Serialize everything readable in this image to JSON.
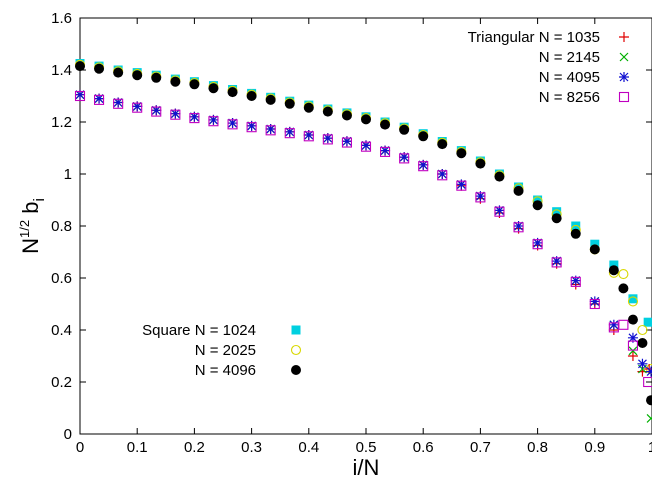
{
  "chart_data": {
    "type": "scatter",
    "xlabel": "i/N",
    "ylabel": "N^{1/2} b_i",
    "ylabel_parts": {
      "base1": "N",
      "sup": "1/2",
      "base2": " b",
      "sub": "i"
    },
    "xlim": [
      0,
      1
    ],
    "ylim": [
      0,
      1.6
    ],
    "x_ticks": [
      0,
      0.1,
      0.2,
      0.3,
      0.4,
      0.5,
      0.6,
      0.7,
      0.8,
      0.9,
      1
    ],
    "y_ticks": [
      0,
      0.2,
      0.4,
      0.6,
      0.8,
      1,
      1.2,
      1.4,
      1.6
    ],
    "x_tick_labels": [
      "0",
      "0.1",
      "0.2",
      "0.3",
      "0.4",
      "0.5",
      "0.6",
      "0.7",
      "0.8",
      "0.9",
      "1"
    ],
    "y_tick_labels": [
      "0",
      "0.2",
      "0.4",
      "0.6",
      "0.8",
      "1",
      "1.2",
      "1.4",
      "1.6"
    ],
    "grid": false,
    "legends": [
      {
        "position": "top-right",
        "entries": [
          {
            "label": "Triangular N = 1035",
            "series": 0
          },
          {
            "label": "N = 2145",
            "series": 1
          },
          {
            "label": "N = 4095",
            "series": 2
          },
          {
            "label": "N = 8256",
            "series": 3
          }
        ]
      },
      {
        "position": "bottom-left",
        "entries": [
          {
            "label": "Square N = 1024",
            "series": 4
          },
          {
            "label": "N = 2025",
            "series": 5
          },
          {
            "label": "N = 4096",
            "series": 6
          }
        ]
      }
    ],
    "series": [
      {
        "name": "Triangular N = 1035",
        "marker": "plus",
        "color": "#e00000",
        "points": [
          [
            0,
            1.305
          ],
          [
            0.0333,
            1.29
          ],
          [
            0.0667,
            1.275
          ],
          [
            0.1,
            1.26
          ],
          [
            0.1333,
            1.245
          ],
          [
            0.1667,
            1.232
          ],
          [
            0.2,
            1.22
          ],
          [
            0.2333,
            1.208
          ],
          [
            0.2667,
            1.196
          ],
          [
            0.3,
            1.185
          ],
          [
            0.3333,
            1.173
          ],
          [
            0.3667,
            1.162
          ],
          [
            0.4,
            1.15
          ],
          [
            0.4333,
            1.138
          ],
          [
            0.4667,
            1.126
          ],
          [
            0.5,
            1.11
          ],
          [
            0.5333,
            1.09
          ],
          [
            0.5667,
            1.065
          ],
          [
            0.6,
            1.035
          ],
          [
            0.6333,
            1.0
          ],
          [
            0.6667,
            0.955
          ],
          [
            0.7,
            0.905
          ],
          [
            0.7333,
            0.85
          ],
          [
            0.7667,
            0.79
          ],
          [
            0.8,
            0.725
          ],
          [
            0.8333,
            0.655
          ],
          [
            0.8667,
            0.575
          ],
          [
            0.9,
            0.5
          ],
          [
            0.9333,
            0.4
          ],
          [
            0.9667,
            0.3
          ],
          [
            0.9833,
            0.24
          ],
          [
            0.995,
            0.25
          ]
        ]
      },
      {
        "name": "N = 2145",
        "marker": "cross",
        "color": "#00b000",
        "points": [
          [
            0,
            1.305
          ],
          [
            0.0333,
            1.29
          ],
          [
            0.0667,
            1.275
          ],
          [
            0.1,
            1.26
          ],
          [
            0.1333,
            1.245
          ],
          [
            0.1667,
            1.232
          ],
          [
            0.2,
            1.22
          ],
          [
            0.2333,
            1.208
          ],
          [
            0.2667,
            1.196
          ],
          [
            0.3,
            1.185
          ],
          [
            0.3333,
            1.173
          ],
          [
            0.3667,
            1.162
          ],
          [
            0.4,
            1.15
          ],
          [
            0.4333,
            1.138
          ],
          [
            0.4667,
            1.126
          ],
          [
            0.5,
            1.11
          ],
          [
            0.5333,
            1.09
          ],
          [
            0.5667,
            1.065
          ],
          [
            0.6,
            1.035
          ],
          [
            0.6333,
            1.0
          ],
          [
            0.6667,
            0.96
          ],
          [
            0.7,
            0.915
          ],
          [
            0.7333,
            0.86
          ],
          [
            0.7667,
            0.8
          ],
          [
            0.8,
            0.735
          ],
          [
            0.8333,
            0.665
          ],
          [
            0.8667,
            0.59
          ],
          [
            0.9,
            0.51
          ],
          [
            0.9333,
            0.42
          ],
          [
            0.9667,
            0.32
          ],
          [
            0.9833,
            0.25
          ],
          [
            0.9983,
            0.06
          ]
        ]
      },
      {
        "name": "N = 4095",
        "marker": "star",
        "color": "#1010d0",
        "points": [
          [
            0,
            1.305
          ],
          [
            0.0333,
            1.29
          ],
          [
            0.0667,
            1.275
          ],
          [
            0.1,
            1.26
          ],
          [
            0.1333,
            1.245
          ],
          [
            0.1667,
            1.232
          ],
          [
            0.2,
            1.22
          ],
          [
            0.2333,
            1.208
          ],
          [
            0.2667,
            1.196
          ],
          [
            0.3,
            1.185
          ],
          [
            0.3333,
            1.173
          ],
          [
            0.3667,
            1.162
          ],
          [
            0.4,
            1.15
          ],
          [
            0.4333,
            1.138
          ],
          [
            0.4667,
            1.126
          ],
          [
            0.5,
            1.11
          ],
          [
            0.5333,
            1.09
          ],
          [
            0.5667,
            1.065
          ],
          [
            0.6,
            1.035
          ],
          [
            0.6333,
            1.0
          ],
          [
            0.6667,
            0.96
          ],
          [
            0.7,
            0.915
          ],
          [
            0.7333,
            0.86
          ],
          [
            0.7667,
            0.8
          ],
          [
            0.8,
            0.735
          ],
          [
            0.8333,
            0.665
          ],
          [
            0.8667,
            0.59
          ],
          [
            0.9,
            0.51
          ],
          [
            0.9333,
            0.42
          ],
          [
            0.9667,
            0.37
          ],
          [
            0.9833,
            0.27
          ],
          [
            0.9983,
            0.24
          ]
        ]
      },
      {
        "name": "N = 8256",
        "marker": "boxdot",
        "color": "#c000c0",
        "points": [
          [
            0,
            1.3
          ],
          [
            0.0333,
            1.285
          ],
          [
            0.0667,
            1.27
          ],
          [
            0.1,
            1.255
          ],
          [
            0.1333,
            1.24
          ],
          [
            0.1667,
            1.228
          ],
          [
            0.2,
            1.215
          ],
          [
            0.2333,
            1.203
          ],
          [
            0.2667,
            1.191
          ],
          [
            0.3,
            1.18
          ],
          [
            0.3333,
            1.168
          ],
          [
            0.3667,
            1.157
          ],
          [
            0.4,
            1.145
          ],
          [
            0.4333,
            1.133
          ],
          [
            0.4667,
            1.121
          ],
          [
            0.5,
            1.105
          ],
          [
            0.5333,
            1.085
          ],
          [
            0.5667,
            1.06
          ],
          [
            0.6,
            1.03
          ],
          [
            0.6333,
            0.995
          ],
          [
            0.6667,
            0.955
          ],
          [
            0.7,
            0.91
          ],
          [
            0.7333,
            0.855
          ],
          [
            0.7667,
            0.795
          ],
          [
            0.8,
            0.73
          ],
          [
            0.8333,
            0.66
          ],
          [
            0.8667,
            0.585
          ],
          [
            0.9,
            0.5
          ],
          [
            0.9333,
            0.41
          ],
          [
            0.95,
            0.42
          ],
          [
            0.9667,
            0.34
          ],
          [
            0.9933,
            0.2
          ]
        ]
      },
      {
        "name": "Square N = 1024",
        "marker": "filled-square",
        "color": "#00d0e0",
        "points": [
          [
            0,
            1.425
          ],
          [
            0.0333,
            1.415
          ],
          [
            0.0667,
            1.4
          ],
          [
            0.1,
            1.39
          ],
          [
            0.1333,
            1.38
          ],
          [
            0.1667,
            1.365
          ],
          [
            0.2,
            1.355
          ],
          [
            0.2333,
            1.34
          ],
          [
            0.2667,
            1.325
          ],
          [
            0.3,
            1.31
          ],
          [
            0.3333,
            1.295
          ],
          [
            0.3667,
            1.28
          ],
          [
            0.4,
            1.265
          ],
          [
            0.4333,
            1.25
          ],
          [
            0.4667,
            1.235
          ],
          [
            0.5,
            1.22
          ],
          [
            0.5333,
            1.2
          ],
          [
            0.5667,
            1.18
          ],
          [
            0.6,
            1.155
          ],
          [
            0.6333,
            1.125
          ],
          [
            0.6667,
            1.09
          ],
          [
            0.7,
            1.05
          ],
          [
            0.7333,
            1.0
          ],
          [
            0.7667,
            0.95
          ],
          [
            0.8,
            0.9
          ],
          [
            0.8333,
            0.855
          ],
          [
            0.8667,
            0.8
          ],
          [
            0.9,
            0.73
          ],
          [
            0.9333,
            0.65
          ],
          [
            0.9667,
            0.52
          ],
          [
            0.9933,
            0.43
          ]
        ]
      },
      {
        "name": "N = 2025",
        "marker": "circle",
        "color": "#d8d800",
        "points": [
          [
            0,
            1.42
          ],
          [
            0.0333,
            1.41
          ],
          [
            0.0667,
            1.395
          ],
          [
            0.1,
            1.385
          ],
          [
            0.1333,
            1.375
          ],
          [
            0.1667,
            1.36
          ],
          [
            0.2,
            1.35
          ],
          [
            0.2333,
            1.335
          ],
          [
            0.2667,
            1.32
          ],
          [
            0.3,
            1.305
          ],
          [
            0.3333,
            1.29
          ],
          [
            0.3667,
            1.275
          ],
          [
            0.4,
            1.26
          ],
          [
            0.4333,
            1.245
          ],
          [
            0.4667,
            1.23
          ],
          [
            0.5,
            1.215
          ],
          [
            0.5333,
            1.195
          ],
          [
            0.5667,
            1.175
          ],
          [
            0.6,
            1.15
          ],
          [
            0.6333,
            1.12
          ],
          [
            0.6667,
            1.085
          ],
          [
            0.7,
            1.045
          ],
          [
            0.7333,
            0.995
          ],
          [
            0.7667,
            0.945
          ],
          [
            0.8,
            0.895
          ],
          [
            0.8333,
            0.845
          ],
          [
            0.8667,
            0.785
          ],
          [
            0.9,
            0.71
          ],
          [
            0.9333,
            0.62
          ],
          [
            0.95,
            0.615
          ],
          [
            0.9667,
            0.51
          ],
          [
            0.9833,
            0.4
          ],
          [
            0.9983,
            0.25
          ]
        ]
      },
      {
        "name": "N = 4096",
        "marker": "filled-circle",
        "color": "#000000",
        "points": [
          [
            0,
            1.415
          ],
          [
            0.0333,
            1.405
          ],
          [
            0.0667,
            1.39
          ],
          [
            0.1,
            1.38
          ],
          [
            0.1333,
            1.37
          ],
          [
            0.1667,
            1.355
          ],
          [
            0.2,
            1.345
          ],
          [
            0.2333,
            1.33
          ],
          [
            0.2667,
            1.315
          ],
          [
            0.3,
            1.3
          ],
          [
            0.3333,
            1.285
          ],
          [
            0.3667,
            1.27
          ],
          [
            0.4,
            1.255
          ],
          [
            0.4333,
            1.24
          ],
          [
            0.4667,
            1.225
          ],
          [
            0.5,
            1.21
          ],
          [
            0.5333,
            1.19
          ],
          [
            0.5667,
            1.17
          ],
          [
            0.6,
            1.145
          ],
          [
            0.6333,
            1.115
          ],
          [
            0.6667,
            1.08
          ],
          [
            0.7,
            1.04
          ],
          [
            0.7333,
            0.99
          ],
          [
            0.7667,
            0.935
          ],
          [
            0.8,
            0.88
          ],
          [
            0.8333,
            0.83
          ],
          [
            0.8667,
            0.77
          ],
          [
            0.9,
            0.71
          ],
          [
            0.9333,
            0.63
          ],
          [
            0.95,
            0.56
          ],
          [
            0.9667,
            0.44
          ],
          [
            0.9833,
            0.35
          ],
          [
            0.9983,
            0.13
          ]
        ]
      }
    ]
  }
}
